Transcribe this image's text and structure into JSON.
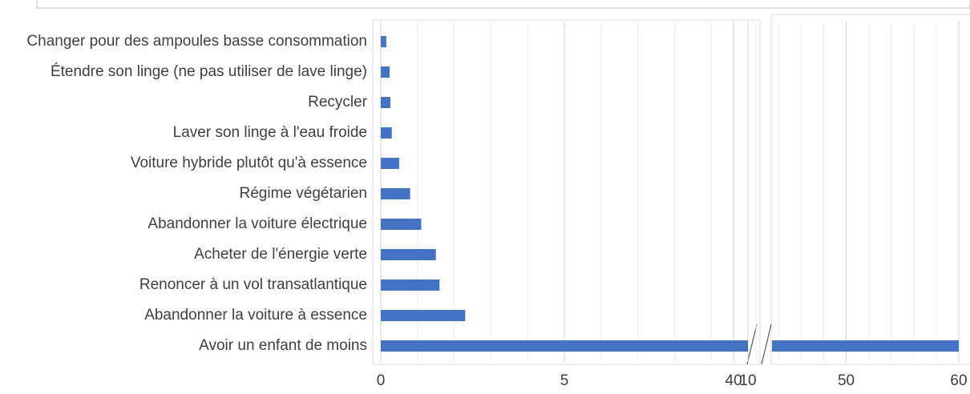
{
  "chart_data": {
    "type": "bar",
    "orientation": "horizontal",
    "categories": [
      "Changer pour des ampoules basse consommation",
      "Étendre son linge (ne pas utiliser de lave linge)",
      "Recycler",
      "Laver son linge à l'eau froide",
      "Voiture hybride plutôt qu'à essence",
      "Régime végétarien",
      "Abandonner la voiture électrique",
      "Acheter de l'énergie verte",
      "Renoncer à un vol transatlantique",
      "Abandonner la voiture à essence",
      "Avoir un enfant de moins"
    ],
    "values": [
      0.15,
      0.24,
      0.26,
      0.3,
      0.5,
      0.8,
      1.1,
      1.5,
      1.6,
      2.3,
      60
    ],
    "color": "#4472c4",
    "xlim": [
      0,
      10
    ],
    "xticks": [
      0,
      5,
      10
    ],
    "xminor": [
      1,
      2,
      3,
      4,
      6,
      7,
      8,
      9
    ],
    "x2lim": [
      38,
      60
    ],
    "x2ticks": [
      40,
      50,
      60
    ],
    "x2minor": [
      42,
      44,
      46,
      48,
      52,
      54,
      56,
      58
    ],
    "grid": true
  }
}
